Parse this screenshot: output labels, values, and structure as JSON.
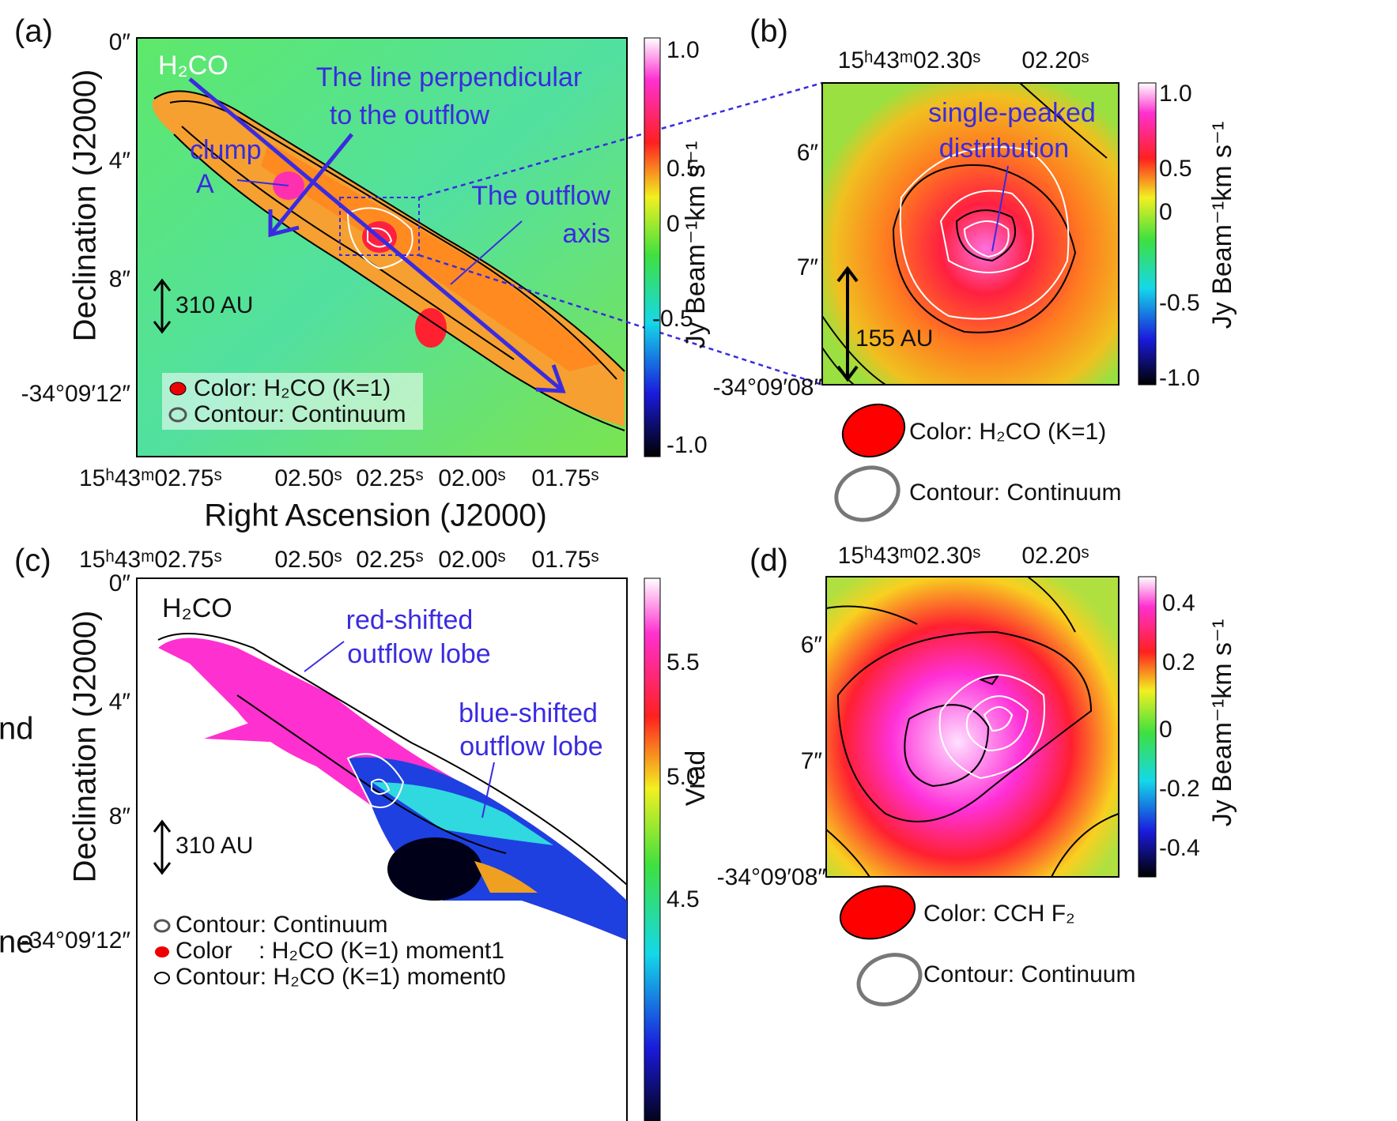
{
  "panels": [
    {
      "label": "(a)",
      "x_ticks": [
        "15ʰ43ᵐ02.75ˢ",
        "02.50ˢ",
        "02.25ˢ",
        "02.00ˢ",
        "01.75ˢ"
      ],
      "y_ticks": [
        "0″",
        "4″",
        "8″",
        "-34°09′12″"
      ],
      "colorbar_ticks": [
        "1.0",
        "0.5",
        "0",
        "-0.5",
        "-1.0"
      ],
      "colorbar_title": "Jy Beam⁻¹km s⁻¹",
      "x_axis_title": "Right Ascension (J2000)",
      "y_axis_title": "Declination (J2000)",
      "annotations": [
        "H₂CO",
        "The line perpendicular",
        "to the outflow",
        "clump",
        "A",
        "The outflow",
        "axis",
        "310 AU"
      ],
      "legend": [
        "Color: H₂CO (K=1)",
        "Contour: Continuum"
      ]
    },
    {
      "label": "(b)",
      "x_ticks": [
        "15ʰ43ᵐ02.30ˢ",
        "02.20ˢ"
      ],
      "y_ticks": [
        "6″",
        "7″",
        "-34°09′08″"
      ],
      "colorbar_ticks": [
        "1.0",
        "0.5",
        "0",
        "-0.5",
        "-1.0"
      ],
      "colorbar_title": "Jy Beam⁻¹km s⁻¹",
      "annotations": [
        "single-peaked",
        "distribution",
        "155 AU"
      ],
      "legend": [
        "Color: H₂CO (K=1)",
        "Contour: Continuum"
      ]
    },
    {
      "label": "(c)",
      "x_ticks": [
        "15ʰ43ᵐ02.75ˢ",
        "02.50ˢ",
        "02.25ˢ",
        "02.00ˢ",
        "01.75ˢ"
      ],
      "y_ticks": [
        "0″",
        "4″",
        "8″",
        "-34°09′12″"
      ],
      "colorbar_ticks": [
        "5.5",
        "5.0",
        "4.5"
      ],
      "colorbar_title": "Vrad",
      "y_axis_title": "Declination (J2000)",
      "annotations": [
        "H₂CO",
        "red-shifted",
        "outflow lobe",
        "blue-shifted",
        "outflow lobe",
        "310 AU"
      ],
      "legend": [
        "Contour: Continuum",
        "Color    : H₂CO (K=1) moment1",
        "Contour: H₂CO (K=1) moment0"
      ]
    },
    {
      "label": "(d)",
      "x_ticks": [
        "15ʰ43ᵐ02.30ˢ",
        "02.20ˢ"
      ],
      "y_ticks": [
        "6″",
        "7″",
        "-34°09′08″"
      ],
      "colorbar_ticks": [
        "0.4",
        "0.2",
        "0",
        "-0.2",
        "-0.4"
      ],
      "colorbar_title": "Jy Beam⁻¹km s⁻¹",
      "annotations": [],
      "legend": [
        "Color: CCH F₂",
        "Contour: Continuum"
      ]
    }
  ],
  "margin_text": [
    "nd",
    "ne"
  ]
}
